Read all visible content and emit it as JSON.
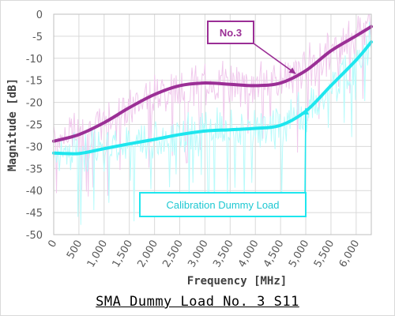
{
  "chart_data": {
    "type": "line",
    "title": "SMA Dummy Load No. 3 S11",
    "xlabel": "Frequency [MHz]",
    "ylabel": "Magnitude [dB]",
    "xlim": [
      0,
      6300
    ],
    "ylim": [
      -50,
      0
    ],
    "x_ticks": [
      "0",
      "500",
      "1,000",
      "1,500",
      "2,000",
      "2,500",
      "3,000",
      "3,500",
      "4,000",
      "4,500",
      "5,000",
      "5,500",
      "6,000"
    ],
    "y_ticks": [
      "0",
      "-5",
      "-10",
      "-15",
      "-20",
      "-25",
      "-30",
      "-35",
      "-40",
      "-45",
      "-50"
    ],
    "grid": true,
    "series": [
      {
        "name": "No.3",
        "color": "#9b2f96",
        "raw_color": "#f0c8ec",
        "x": [
          0,
          500,
          1000,
          1500,
          2000,
          2500,
          3000,
          3500,
          4000,
          4500,
          5000,
          5500,
          6000,
          6300
        ],
        "values": [
          -28.8,
          -27.3,
          -24.6,
          -21.2,
          -18.2,
          -16.2,
          -15.6,
          -15.9,
          -16.2,
          -15.6,
          -12.8,
          -8.3,
          -4.9,
          -2.8
        ]
      },
      {
        "name": "Calibration Dummy Load",
        "color": "#1ee6ee",
        "raw_color": "#b8fbfb",
        "x": [
          0,
          500,
          1000,
          1500,
          2000,
          2500,
          3000,
          3500,
          4000,
          4500,
          5000,
          5500,
          6000,
          6300
        ],
        "values": [
          -31.5,
          -31.6,
          -30.5,
          -29.4,
          -28.4,
          -27.3,
          -26.5,
          -26.2,
          -25.9,
          -25.2,
          -22.0,
          -16.2,
          -10.4,
          -6.3
        ]
      }
    ],
    "annotations": [
      {
        "label": "No.3",
        "series": "No.3",
        "point": [
          4800,
          -13.5
        ]
      },
      {
        "label": "Calibration Dummy Load",
        "series": "Calibration Dummy Load",
        "point": [
          5000,
          -21.3
        ]
      }
    ]
  }
}
